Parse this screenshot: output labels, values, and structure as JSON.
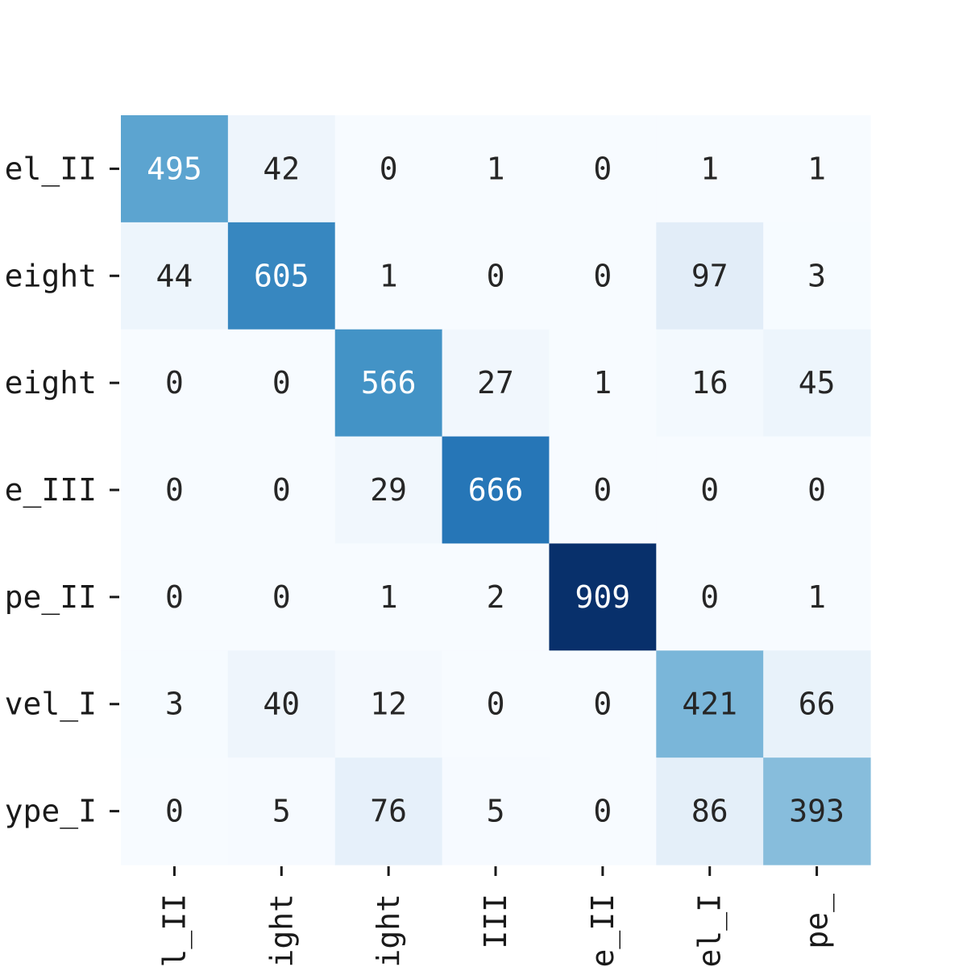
{
  "chart_data": {
    "type": "heatmap",
    "row_labels": [
      "el_II",
      "eight",
      "eight",
      "e_III",
      "pe_II",
      "vel_I",
      "ype_I"
    ],
    "col_labels": [
      "l_II",
      "ight",
      "ight",
      "III",
      "e_II",
      "el_I",
      "pe_"
    ],
    "matrix": [
      [
        495,
        42,
        0,
        1,
        0,
        1,
        1
      ],
      [
        44,
        605,
        1,
        0,
        0,
        97,
        3
      ],
      [
        0,
        0,
        566,
        27,
        1,
        16,
        45
      ],
      [
        0,
        0,
        29,
        666,
        0,
        0,
        0
      ],
      [
        0,
        0,
        1,
        2,
        909,
        0,
        1
      ],
      [
        3,
        40,
        12,
        0,
        0,
        421,
        66
      ],
      [
        0,
        5,
        76,
        5,
        0,
        86,
        393
      ]
    ],
    "colormap": "Blues",
    "vmin": 0,
    "vmax": 909,
    "colorbar": false,
    "grid": false
  }
}
